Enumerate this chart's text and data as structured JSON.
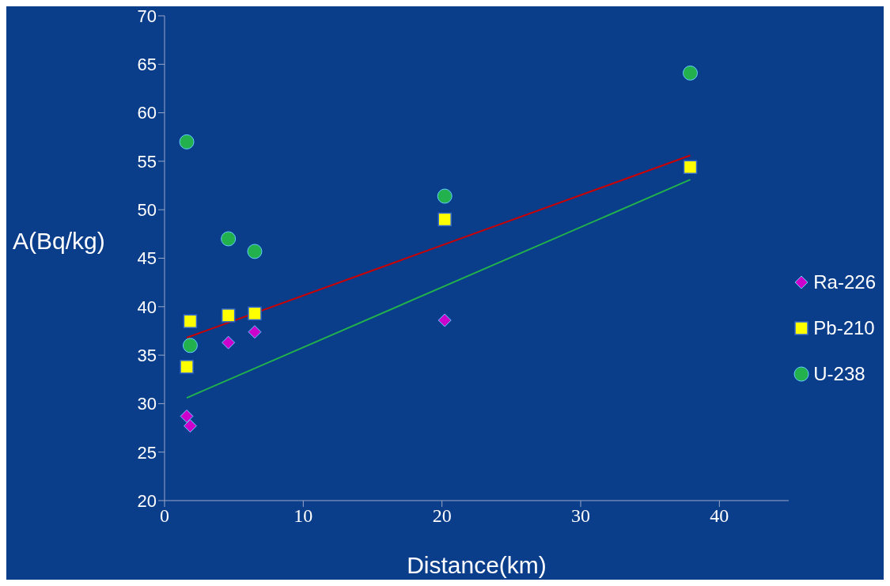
{
  "chart_data": {
    "type": "scatter",
    "xlabel": "Distance(km)",
    "ylabel": "A(Bq/kg)",
    "xlim": [
      0,
      45
    ],
    "xticks": [
      0,
      10,
      20,
      30,
      40
    ],
    "ylim": [
      20,
      70
    ],
    "yticks": [
      20,
      25,
      30,
      35,
      40,
      45,
      50,
      55,
      60,
      65,
      70
    ],
    "grid": false,
    "legend": "right",
    "series": [
      {
        "name": "Ra-226",
        "color": "#cc00cc",
        "marker": "diamond",
        "x": [
          1.6,
          1.85,
          4.6,
          6.5,
          20.2
        ],
        "values": [
          28.7,
          27.7,
          36.3,
          37.4,
          38.6
        ]
      },
      {
        "name": "Pb-210",
        "color": "#ffff00",
        "marker": "square",
        "x": [
          1.6,
          1.85,
          4.6,
          6.5,
          20.2,
          37.9
        ],
        "values": [
          33.8,
          38.5,
          39.1,
          39.3,
          49.0,
          54.4
        ]
      },
      {
        "name": "U-238",
        "color": "#22b14c",
        "marker": "circle",
        "x": [
          1.6,
          1.85,
          4.6,
          6.5,
          20.2,
          37.9
        ],
        "values": [
          57.0,
          36.0,
          47.0,
          45.7,
          51.4,
          64.1
        ]
      },
      {
        "type": "line",
        "color": "#cc0000",
        "x": [
          1.6,
          37.9
        ],
        "values": [
          36.8,
          55.6
        ]
      },
      {
        "type": "line",
        "color": "#22b14c",
        "x": [
          1.6,
          37.9
        ],
        "values": [
          30.6,
          53.1
        ]
      }
    ]
  }
}
